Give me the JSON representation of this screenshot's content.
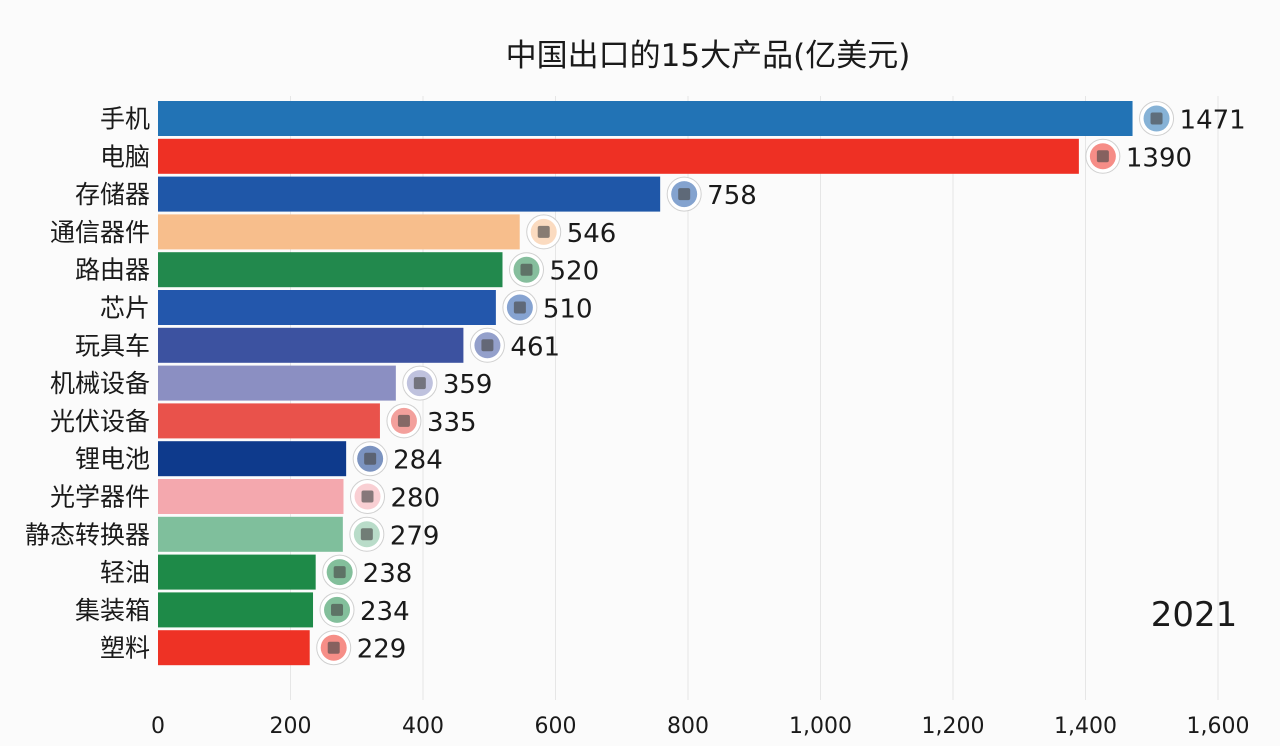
{
  "chart_data": {
    "type": "bar",
    "orientation": "horizontal",
    "title": "中国出口的15大产品(亿美元)",
    "period_label": "2021",
    "categories": [
      "手机",
      "电脑",
      "存储器",
      "通信器件",
      "路由器",
      "芯片",
      "玩具车",
      "机械设备",
      "光伏设备",
      "锂电池",
      "光学器件",
      "静态转换器",
      "轻油",
      "集装箱",
      "塑料"
    ],
    "values": [
      1471,
      1390,
      758,
      546,
      520,
      510,
      461,
      359,
      335,
      284,
      280,
      279,
      238,
      234,
      229
    ],
    "value_labels": [
      "1471",
      "1390",
      "758",
      "546",
      "520",
      "510",
      "461",
      "359",
      "335",
      "284",
      "280",
      "279",
      "238",
      "234",
      "229"
    ],
    "colors": [
      "#2273b5",
      "#ee3024",
      "#1f57a8",
      "#f7be8c",
      "#22894d",
      "#2357ac",
      "#3c52a0",
      "#8b8fc2",
      "#e9524b",
      "#0e3a8c",
      "#f4a8ae",
      "#7fbf9c",
      "#1e8a48",
      "#1e8a48",
      "#ee3225"
    ],
    "icons": [
      "phone-icon",
      "laptop-icon",
      "memory-chip-icon",
      "network-equipment-icon",
      "router-icon",
      "chip-icon",
      "toy-car-icon",
      "machinery-icon",
      "solar-equipment-icon",
      "lithium-battery-icon",
      "optics-icon",
      "converter-icon",
      "light-oil-icon",
      "container-icon",
      "plastic-icon"
    ],
    "xlim": [
      0,
      1600
    ],
    "xticks": [
      0,
      200,
      400,
      600,
      800,
      1000,
      1200,
      1400,
      1600
    ],
    "xtick_labels": [
      "0",
      "200",
      "400",
      "600",
      "800",
      "1,000",
      "1,200",
      "1,400",
      "1,600"
    ],
    "grid": true,
    "legend": "none"
  }
}
